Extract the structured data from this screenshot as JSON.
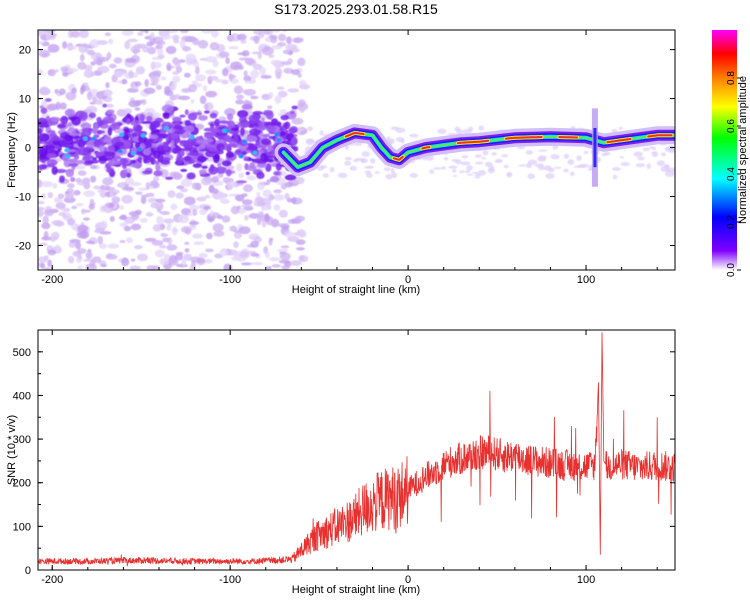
{
  "title": "S173.2025.293.01.58.R15",
  "chart_data": [
    {
      "type": "heatmap",
      "name": "spectrogram",
      "xlabel": "Height of straight line (km)",
      "ylabel": "Frequency (Hz)",
      "xlim": [
        -208,
        150
      ],
      "ylim": [
        -25,
        24
      ],
      "xticks": [
        -200,
        -100,
        0,
        100
      ],
      "yticks": [
        -20,
        -10,
        0,
        10,
        20
      ],
      "ridge": [
        {
          "x": -70,
          "y": -1
        },
        {
          "x": -62,
          "y": -4
        },
        {
          "x": -55,
          "y": -3
        },
        {
          "x": -48,
          "y": 0
        },
        {
          "x": -40,
          "y": 1.5
        },
        {
          "x": -30,
          "y": 3
        },
        {
          "x": -20,
          "y": 2.5
        },
        {
          "x": -15,
          "y": 0
        },
        {
          "x": -10,
          "y": -2
        },
        {
          "x": -5,
          "y": -2.5
        },
        {
          "x": 0,
          "y": -1
        },
        {
          "x": 10,
          "y": 0
        },
        {
          "x": 20,
          "y": 0.5
        },
        {
          "x": 30,
          "y": 1
        },
        {
          "x": 40,
          "y": 1.2
        },
        {
          "x": 60,
          "y": 2
        },
        {
          "x": 80,
          "y": 2.2
        },
        {
          "x": 100,
          "y": 2
        },
        {
          "x": 110,
          "y": 1
        },
        {
          "x": 120,
          "y": 1.5
        },
        {
          "x": 140,
          "y": 2.5
        },
        {
          "x": 150,
          "y": 2.5
        }
      ],
      "colorbar": {
        "label": "Normalized spectral amplitude",
        "range": [
          0,
          1
        ],
        "ticks": [
          0.0,
          0.2,
          0.4,
          0.6,
          0.8
        ],
        "tick_labels": [
          "0.0",
          "0.2",
          "0.4",
          "0.6",
          "0.8"
        ],
        "colors": [
          "#ffffff",
          "#8000ff",
          "#0000ff",
          "#00ffff",
          "#00ff00",
          "#ffff00",
          "#ff8000",
          "#ff0000",
          "#ff00ff"
        ]
      }
    },
    {
      "type": "line",
      "name": "snr",
      "xlabel": "Height of straight line (km)",
      "ylabel": "SNR (10 * v/v)",
      "xlim": [
        -208,
        150
      ],
      "ylim": [
        0,
        550
      ],
      "xticks": [
        -200,
        -100,
        0,
        100
      ],
      "yticks": [
        0,
        100,
        200,
        300,
        400,
        500
      ],
      "series": [
        {
          "name": "SNR",
          "color": "#e8302e",
          "x": [
            -208,
            -180,
            -150,
            -120,
            -90,
            -75,
            -65,
            -60,
            -55,
            -50,
            -45,
            -40,
            -35,
            -30,
            -25,
            -20,
            -15,
            -10,
            -5,
            0,
            5,
            10,
            15,
            20,
            25,
            30,
            35,
            40,
            45,
            50,
            55,
            60,
            65,
            70,
            80,
            90,
            100,
            105,
            107,
            108,
            109,
            110,
            112,
            115,
            120,
            130,
            140,
            150
          ],
          "values": [
            20,
            20,
            22,
            20,
            20,
            22,
            25,
            45,
            65,
            80,
            90,
            100,
            110,
            120,
            140,
            150,
            160,
            165,
            170,
            185,
            200,
            215,
            225,
            240,
            250,
            255,
            262,
            268,
            270,
            265,
            260,
            262,
            255,
            250,
            245,
            240,
            238,
            240,
            430,
            35,
            545,
            250,
            235,
            240,
            242,
            235,
            240,
            235
          ]
        }
      ]
    }
  ]
}
